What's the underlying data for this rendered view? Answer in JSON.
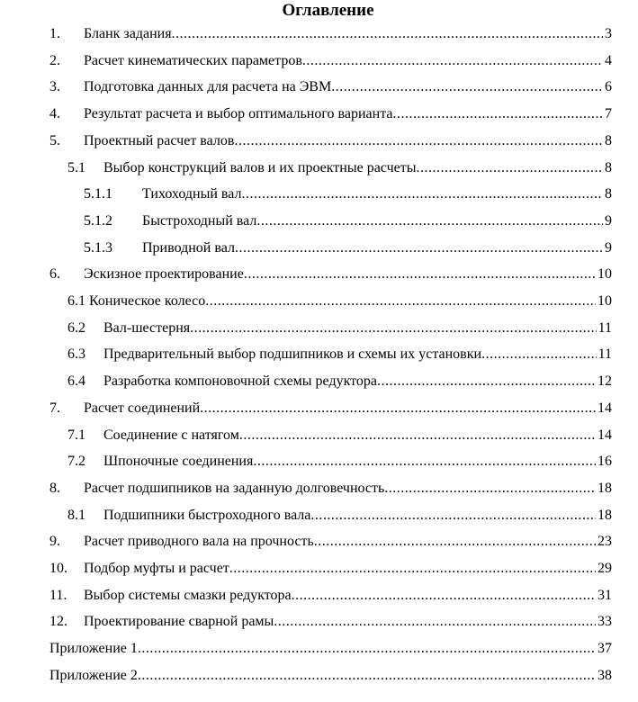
{
  "title": "Оглавление",
  "entries": [
    {
      "num": "1.",
      "text": "Бланк задания",
      "page": "3",
      "level": 1
    },
    {
      "num": "2.",
      "text": "Расчет кинематических параметров",
      "page": "4",
      "level": 1
    },
    {
      "num": "3.",
      "text": "Подготовка данных для расчета на ЭВМ",
      "page": "6",
      "level": 1
    },
    {
      "num": "4.",
      "text": "Результат расчета и выбор оптимального варианта",
      "page": "7",
      "level": 1
    },
    {
      "num": "5.",
      "text": "Проектный расчет валов",
      "page": "8",
      "level": 1
    },
    {
      "num": "5.1",
      "text": "Выбор конструкций валов и их проектные расчеты",
      "page": "8",
      "level": 2
    },
    {
      "num": "5.1.1",
      "text": "Тихоходный вал",
      "page": "8",
      "level": 3
    },
    {
      "num": "5.1.2",
      "text": "Быстроходный вал",
      "page": "9",
      "level": 3
    },
    {
      "num": "5.1.3",
      "text": "Приводной вал",
      "page": "9",
      "level": 3
    },
    {
      "num": "6.",
      "text": "Эскизное проектирование",
      "page": "10",
      "level": 1
    },
    {
      "num": "",
      "text": "6.1 Коническое колесо",
      "page": "10",
      "level": 2
    },
    {
      "num": "6.2",
      "text": "Вал-шестерня",
      "page": "11",
      "level": 2
    },
    {
      "num": "6.3",
      "text": "Предварительный выбор подшипников и схемы их установки",
      "page": "11",
      "level": 2
    },
    {
      "num": "6.4",
      "text": "Разработка компоновочной схемы редуктора",
      "page": "12",
      "level": 2
    },
    {
      "num": "7.",
      "text": "Расчет соединений",
      "page": "14",
      "level": 1
    },
    {
      "num": "7.1",
      "text": "Соединение с натягом",
      "page": "14",
      "level": 2
    },
    {
      "num": "7.2",
      "text": "Шпоночные соединения",
      "page": "16",
      "level": 2
    },
    {
      "num": "8.",
      "text": "Расчет подшипников на заданную долговечность",
      "page": "18",
      "level": 1
    },
    {
      "num": "8.1",
      "text": "Подшипники быстроходного вала",
      "page": "18",
      "level": 2
    },
    {
      "num": "9.",
      "text": "Расчет приводного вала на прочность",
      "page": "23",
      "level": 1
    },
    {
      "num": "10.",
      "text": "Подбор муфты и расчет",
      "page": "29",
      "level": 1
    },
    {
      "num": "11.",
      "text": "Выбор системы смазки редуктора",
      "page": "31",
      "level": 1
    },
    {
      "num": "12.",
      "text": "Проектирование сварной рамы",
      "page": "33",
      "level": 1
    },
    {
      "num": "",
      "text": "Приложение 1",
      "page": "37",
      "level": 0
    },
    {
      "num": "",
      "text": "Приложение 2",
      "page": "38",
      "level": 0
    }
  ]
}
